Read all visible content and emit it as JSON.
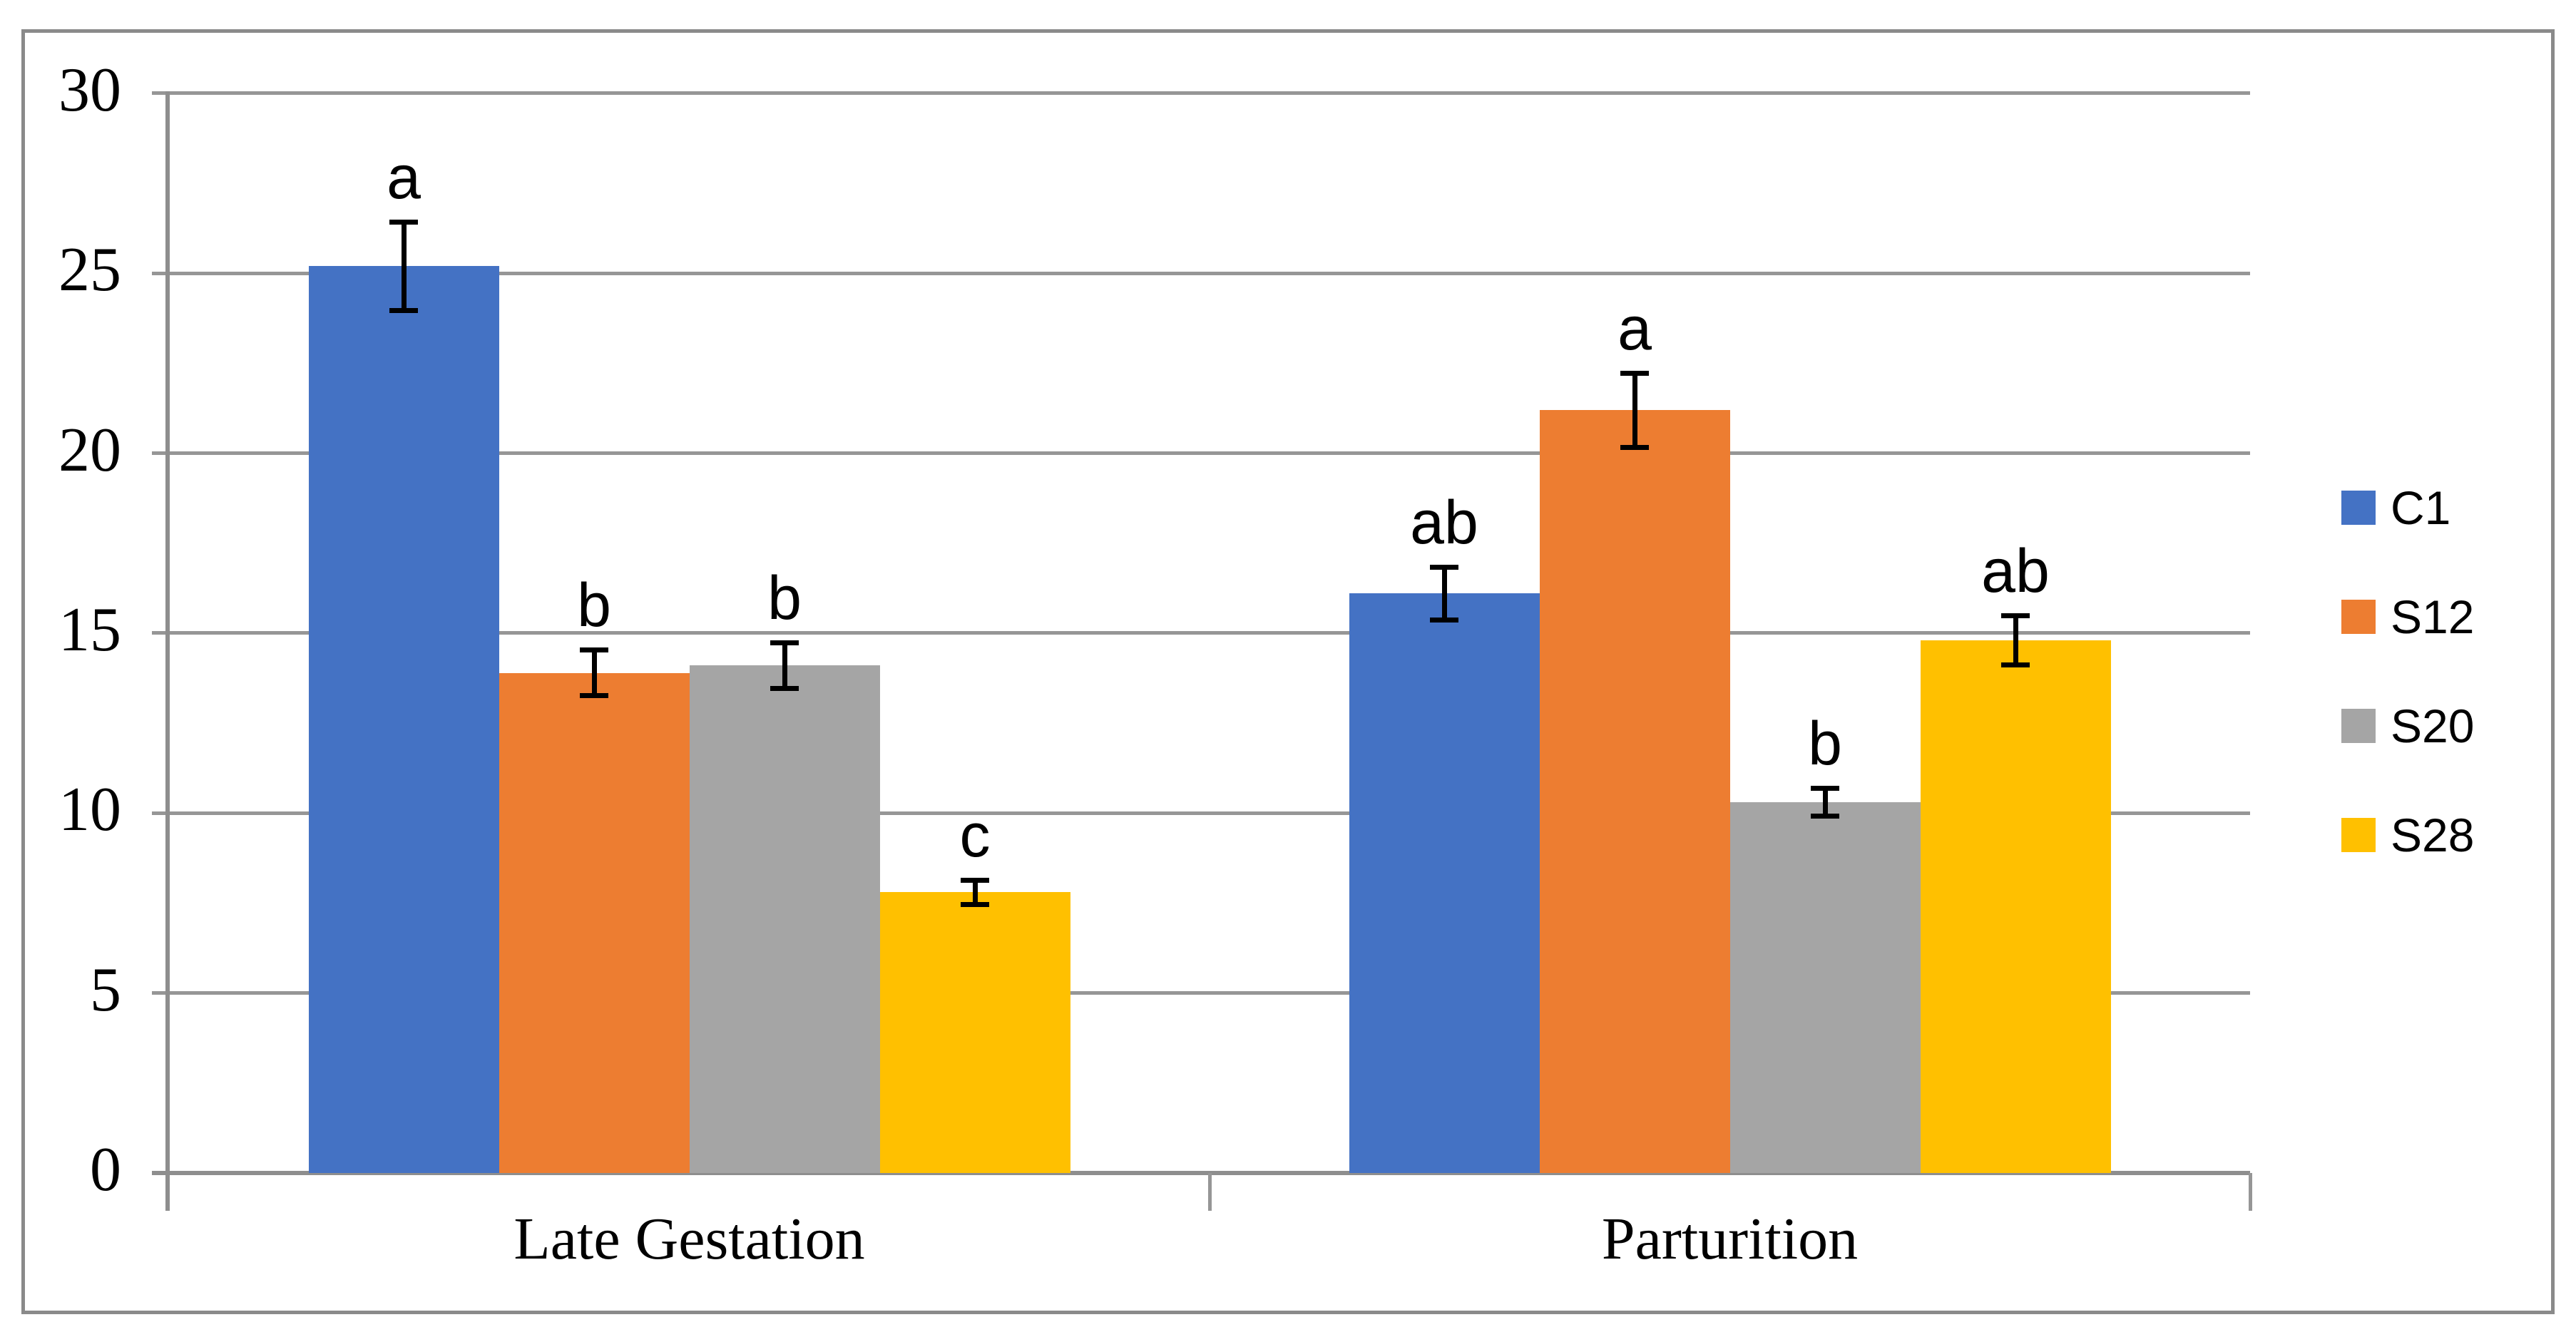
{
  "figure": {
    "background": "#FFFFFF",
    "border_color": "#8A8A8A"
  },
  "chart_data": {
    "type": "bar",
    "title": "",
    "categories": [
      "Late Gestation",
      "Parturition"
    ],
    "series": [
      {
        "name": "C1",
        "color": "#4472C4",
        "values": [
          25.2,
          16.1
        ],
        "errors": [
          1.3,
          0.8
        ],
        "sig_letters": [
          "a",
          "ab"
        ]
      },
      {
        "name": "S12",
        "color": "#ED7D31",
        "values": [
          13.9,
          21.2
        ],
        "errors": [
          0.7,
          1.1
        ],
        "sig_letters": [
          "b",
          "a"
        ]
      },
      {
        "name": "S20",
        "color": "#A5A5A5",
        "values": [
          14.1,
          10.3
        ],
        "errors": [
          0.7,
          0.45
        ],
        "sig_letters": [
          "b",
          "b"
        ]
      },
      {
        "name": "S28",
        "color": "#FFC000",
        "values": [
          7.8,
          14.8
        ],
        "errors": [
          0.4,
          0.75
        ],
        "sig_letters": [
          "c",
          "ab"
        ]
      }
    ],
    "y_axis": {
      "min": 0,
      "max": 30,
      "step": 5,
      "tick_labels": [
        "0",
        "5",
        "10",
        "15",
        "20",
        "25",
        "30"
      ]
    },
    "x_axis": {
      "labels": [
        "Late Gestation",
        "Parturition"
      ]
    },
    "legend": {
      "position": "right",
      "entries": [
        "C1",
        "S12",
        "S20",
        "S28"
      ]
    },
    "gridlines": true,
    "error_bars": true,
    "colors": {
      "gridline": "#969696",
      "axis": "#8E8E8E",
      "error_bar": "#000000",
      "text": "#000000"
    }
  }
}
